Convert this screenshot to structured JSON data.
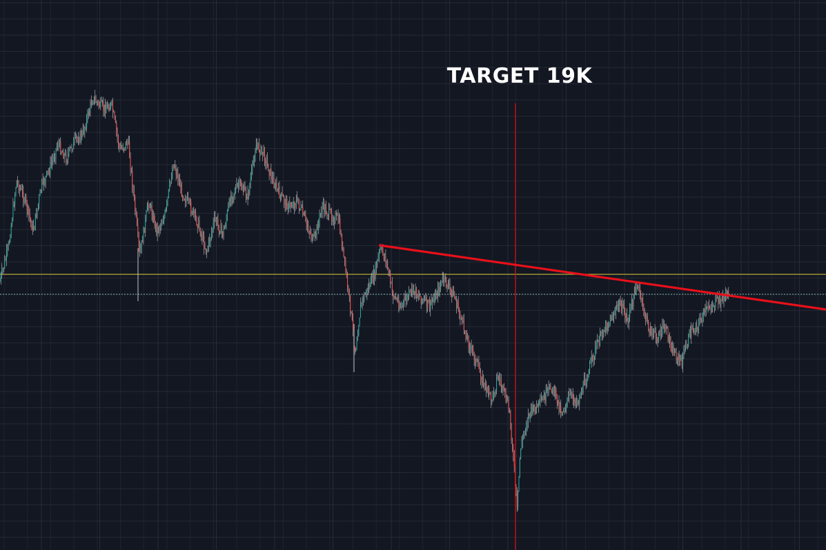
{
  "chart_data": {
    "type": "candlestick",
    "title": "",
    "xlabel": "",
    "ylabel": "",
    "grid": true,
    "annotations": [
      {
        "text": "TARGET 19K"
      }
    ],
    "colors": {
      "background": "#131722",
      "grid": "#2a2e39",
      "candle_up": "#26a69a",
      "candle_down": "#ef5350",
      "wick": "#d8d8d8",
      "trendline": "#e8101a",
      "vertical_marker": "#d01015",
      "support_line": "#b9a83a",
      "current_price_line": "#7fb7b0",
      "annotation": "#ffffff"
    },
    "price_path": [
      [
        0,
        408
      ],
      [
        0.01,
        360
      ],
      [
        0.02,
        262
      ],
      [
        0.03,
        290
      ],
      [
        0.04,
        335
      ],
      [
        0.05,
        272
      ],
      [
        0.06,
        245
      ],
      [
        0.07,
        208
      ],
      [
        0.08,
        230
      ],
      [
        0.09,
        205
      ],
      [
        0.1,
        195
      ],
      [
        0.112,
        142
      ],
      [
        0.125,
        158
      ],
      [
        0.135,
        152
      ],
      [
        0.145,
        218
      ],
      [
        0.155,
        205
      ],
      [
        0.163,
        298
      ],
      [
        0.169,
        372
      ],
      [
        0.18,
        292
      ],
      [
        0.19,
        335
      ],
      [
        0.2,
        312
      ],
      [
        0.21,
        235
      ],
      [
        0.22,
        278
      ],
      [
        0.23,
        300
      ],
      [
        0.24,
        325
      ],
      [
        0.25,
        365
      ],
      [
        0.26,
        318
      ],
      [
        0.27,
        340
      ],
      [
        0.28,
        282
      ],
      [
        0.29,
        268
      ],
      [
        0.3,
        285
      ],
      [
        0.31,
        210
      ],
      [
        0.32,
        225
      ],
      [
        0.33,
        262
      ],
      [
        0.34,
        285
      ],
      [
        0.35,
        300
      ],
      [
        0.36,
        292
      ],
      [
        0.37,
        322
      ],
      [
        0.38,
        350
      ],
      [
        0.39,
        300
      ],
      [
        0.4,
        312
      ],
      [
        0.41,
        320
      ],
      [
        0.418,
        390
      ],
      [
        0.425,
        455
      ],
      [
        0.43,
        510
      ],
      [
        0.437,
        440
      ],
      [
        0.445,
        420
      ],
      [
        0.453,
        400
      ],
      [
        0.46,
        362
      ],
      [
        0.467,
        375
      ],
      [
        0.475,
        425
      ],
      [
        0.485,
        445
      ],
      [
        0.5,
        420
      ],
      [
        0.52,
        445
      ],
      [
        0.537,
        405
      ],
      [
        0.55,
        430
      ],
      [
        0.558,
        462
      ],
      [
        0.568,
        500
      ],
      [
        0.575,
        520
      ],
      [
        0.585,
        555
      ],
      [
        0.595,
        580
      ],
      [
        0.603,
        545
      ],
      [
        0.61,
        570
      ],
      [
        0.617,
        598
      ],
      [
        0.623,
        690
      ],
      [
        0.626,
        742
      ],
      [
        0.63,
        650
      ],
      [
        0.64,
        600
      ],
      [
        0.655,
        585
      ],
      [
        0.668,
        560
      ],
      [
        0.68,
        598
      ],
      [
        0.69,
        575
      ],
      [
        0.7,
        582
      ],
      [
        0.71,
        548
      ],
      [
        0.72,
        510
      ],
      [
        0.73,
        480
      ],
      [
        0.74,
        462
      ],
      [
        0.75,
        440
      ],
      [
        0.76,
        465
      ],
      [
        0.771,
        410
      ],
      [
        0.778,
        445
      ],
      [
        0.786,
        478
      ],
      [
        0.795,
        490
      ],
      [
        0.805,
        475
      ],
      [
        0.815,
        510
      ],
      [
        0.825,
        526
      ],
      [
        0.835,
        485
      ],
      [
        0.845,
        470
      ],
      [
        0.855,
        450
      ],
      [
        0.865,
        440
      ],
      [
        0.872,
        435
      ],
      [
        0.882,
        425
      ]
    ],
    "trendline": [
      [
        0.46,
        356
      ],
      [
        1.0,
        449
      ]
    ],
    "vertical_marker_x": 0.624,
    "support_level": 398,
    "current_price_level": 427
  }
}
